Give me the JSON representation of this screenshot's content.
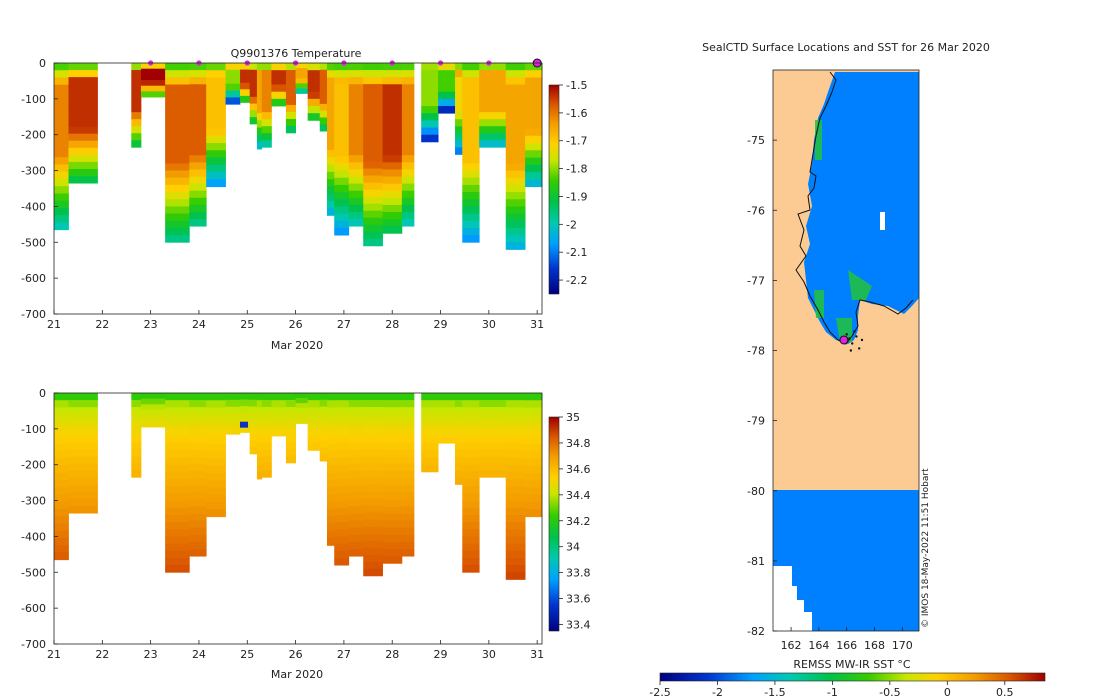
{
  "chart_data": [
    {
      "type": "heatmap",
      "title": "Q9901376  Temperature",
      "xlabel": "Mar 2020",
      "ylabel": "",
      "xlim": [
        21,
        31.1
      ],
      "ylim": [
        -700,
        0
      ],
      "x_ticks": [
        "21",
        "22",
        "23",
        "24",
        "25",
        "26",
        "27",
        "28",
        "29",
        "30",
        "31"
      ],
      "y_ticks": [
        "0",
        "-100",
        "-200",
        "-300",
        "-400",
        "-500",
        "-600",
        "-700"
      ],
      "colorbar": {
        "min": -2.25,
        "max": -1.5,
        "ticks": [
          "-1.5",
          "-1.6",
          "-1.7",
          "-1.8",
          "-1.9",
          "-2",
          "-2.1",
          "-2.2"
        ]
      },
      "profiles": [
        {
          "x0": 21.0,
          "x1": 21.3,
          "depth": 465,
          "warm": 0.85
        },
        {
          "x0": 21.3,
          "x1": 21.9,
          "depth": 335,
          "warm": 0.95
        },
        {
          "x0": 22.6,
          "x1": 22.8,
          "depth": 235,
          "warm": 0.95
        },
        {
          "x0": 22.8,
          "x1": 23.3,
          "depth": 95,
          "warm": 1.0
        },
        {
          "x0": 23.3,
          "x1": 23.8,
          "depth": 500,
          "warm": 0.9
        },
        {
          "x0": 23.8,
          "x1": 24.15,
          "depth": 455,
          "warm": 0.9
        },
        {
          "x0": 24.15,
          "x1": 24.55,
          "depth": 345,
          "warm": 0.75
        },
        {
          "x0": 24.55,
          "x1": 24.85,
          "depth": 115,
          "warm": 0.6
        },
        {
          "x0": 24.85,
          "x1": 25.05,
          "depth": 110,
          "warm": 0.95
        },
        {
          "x0": 25.05,
          "x1": 25.2,
          "depth": 170,
          "warm": 0.95
        },
        {
          "x0": 25.2,
          "x1": 25.3,
          "depth": 240,
          "warm": 0.8
        },
        {
          "x0": 25.3,
          "x1": 25.5,
          "depth": 235,
          "warm": 0.85
        },
        {
          "x0": 25.5,
          "x1": 25.8,
          "depth": 120,
          "warm": 0.95
        },
        {
          "x0": 25.8,
          "x1": 26.0,
          "depth": 195,
          "warm": 0.9
        },
        {
          "x0": 26.0,
          "x1": 26.25,
          "depth": 85,
          "warm": 0.8
        },
        {
          "x0": 26.25,
          "x1": 26.5,
          "depth": 160,
          "warm": 0.95
        },
        {
          "x0": 26.5,
          "x1": 26.65,
          "depth": 190,
          "warm": 0.9
        },
        {
          "x0": 26.65,
          "x1": 26.8,
          "depth": 425,
          "warm": 0.8
        },
        {
          "x0": 26.8,
          "x1": 27.1,
          "depth": 480,
          "warm": 0.75
        },
        {
          "x0": 27.1,
          "x1": 27.4,
          "depth": 455,
          "warm": 0.85
        },
        {
          "x0": 27.4,
          "x1": 27.8,
          "depth": 510,
          "warm": 0.9
        },
        {
          "x0": 27.8,
          "x1": 28.2,
          "depth": 475,
          "warm": 0.95
        },
        {
          "x0": 28.2,
          "x1": 28.45,
          "depth": 455,
          "warm": 0.85
        },
        {
          "x0": 28.6,
          "x1": 28.95,
          "depth": 220,
          "warm": 0.6
        },
        {
          "x0": 28.95,
          "x1": 29.3,
          "depth": 140,
          "warm": 0.55
        },
        {
          "x0": 29.3,
          "x1": 29.45,
          "depth": 255,
          "warm": 0.7
        },
        {
          "x0": 29.45,
          "x1": 29.8,
          "depth": 500,
          "warm": 0.75
        },
        {
          "x0": 29.8,
          "x1": 30.35,
          "depth": 235,
          "warm": 0.8
        },
        {
          "x0": 30.35,
          "x1": 30.75,
          "depth": 520,
          "warm": 0.8
        },
        {
          "x0": 30.75,
          "x1": 31.1,
          "depth": 345,
          "warm": 0.8
        }
      ],
      "markers": [
        23,
        24,
        25,
        26,
        27,
        28,
        29,
        30
      ],
      "current_marker": 31
    },
    {
      "type": "heatmap",
      "title": "",
      "xlabel": "Mar 2020",
      "ylabel": "",
      "xlim": [
        21,
        31.1
      ],
      "ylim": [
        -700,
        0
      ],
      "x_ticks": [
        "21",
        "22",
        "23",
        "24",
        "25",
        "26",
        "27",
        "28",
        "29",
        "30",
        "31"
      ],
      "y_ticks": [
        "0",
        "-100",
        "-200",
        "-300",
        "-400",
        "-500",
        "-600",
        "-700"
      ],
      "colorbar": {
        "min": 33.35,
        "max": 35.0,
        "ticks": [
          "35",
          "34.8",
          "34.6",
          "34.4",
          "34.2",
          "34",
          "33.8",
          "33.6",
          "33.4"
        ]
      }
    },
    {
      "type": "heatmap",
      "title": "SealCTD Surface Locations and SST for 26 Mar 2020",
      "xlabel": "REMSS MW-IR SST °C",
      "ylabel": "",
      "xlim": [
        160.7,
        171.2
      ],
      "ylim": [
        -82,
        -74.0
      ],
      "x_ticks": [
        "162",
        "164",
        "166",
        "168",
        "170"
      ],
      "y_ticks": [
        "-75",
        "-76",
        "-77",
        "-78",
        "-79",
        "-80",
        "-81",
        "-82"
      ],
      "colorbar": {
        "min": -2.5,
        "max": 0.85,
        "ticks": [
          "-2.5",
          "-2",
          "-1.5",
          "-1",
          "-0.5",
          "0",
          "0.5"
        ]
      },
      "current_location": [
        165.8,
        -77.85
      ]
    }
  ],
  "watermark": "© IMOS 18-May-2022 11:51 Hobart"
}
